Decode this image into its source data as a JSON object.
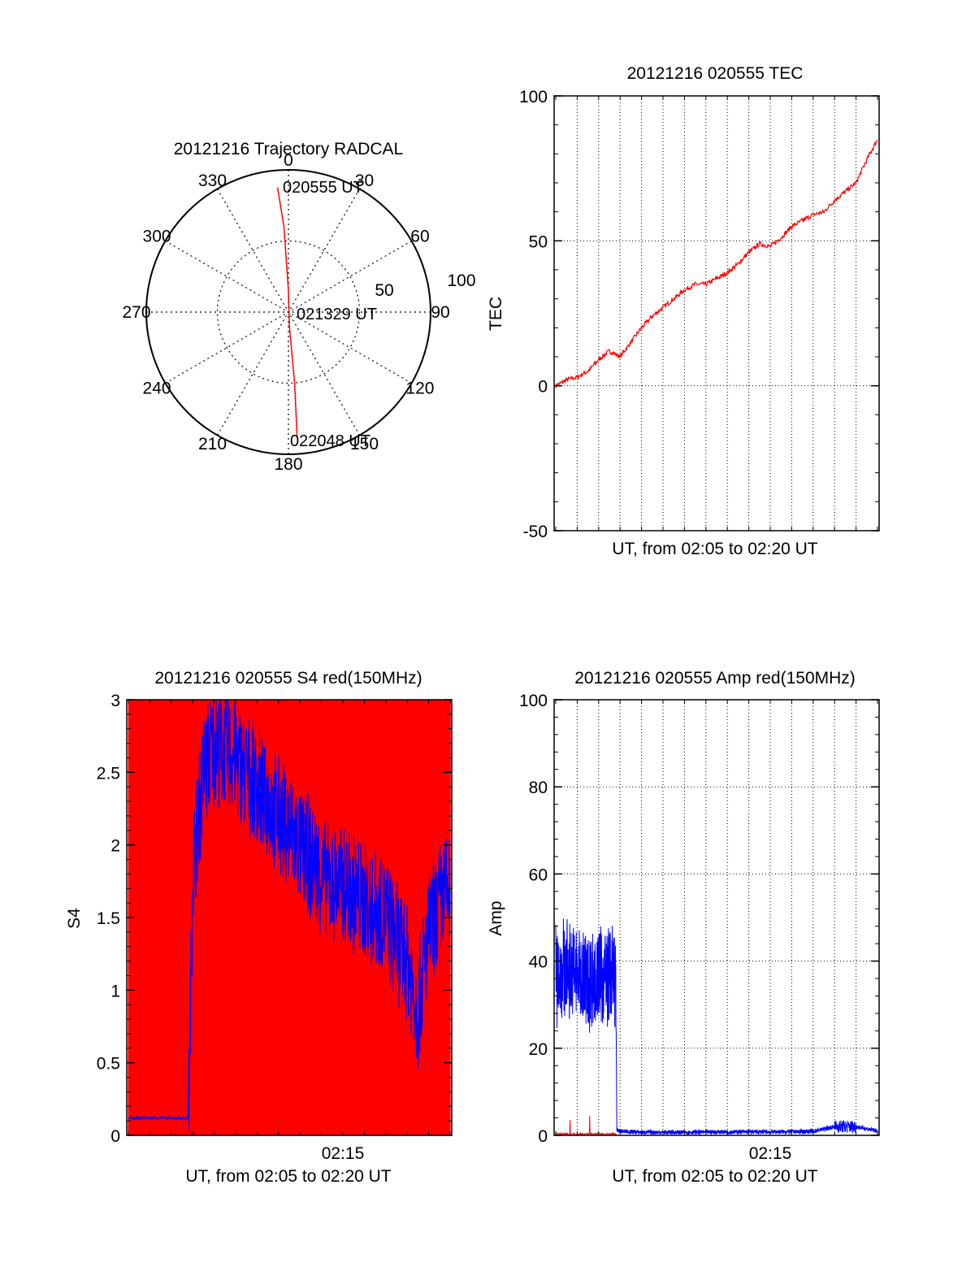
{
  "colors": {
    "red": "#ff0000",
    "blue": "#0000ff",
    "axis": "#000000",
    "grid": "#000000"
  },
  "chart_data": [
    {
      "id": "trajectory",
      "type": "polar",
      "title": "20121216 Trajectory RADCAL",
      "angle_labels": [
        "0",
        "30",
        "60",
        "90",
        "120",
        "150",
        "180",
        "210",
        "240",
        "270",
        "300",
        "330"
      ],
      "radial_labels": [
        "50",
        "100"
      ],
      "rlim": [
        0,
        100
      ],
      "grid": true,
      "annotations": [
        "020555 UT",
        "021329 UT",
        "022048 UT"
      ],
      "series": [
        {
          "color": "#ff0000",
          "points": [
            [
              355,
              88
            ],
            [
              357,
              60
            ],
            [
              0,
              15
            ],
            [
              176,
              10
            ],
            [
              175,
              50
            ],
            [
              176,
              88
            ]
          ]
        }
      ]
    },
    {
      "id": "tec",
      "type": "line",
      "title": "20121216 020555 TEC",
      "xlabel": "UT, from 02:05 to 02:20 UT",
      "ylabel": "TEC",
      "ylim": [
        -50,
        100
      ],
      "yticks": [
        "-50",
        "0",
        "50",
        "100"
      ],
      "xlim_minutes": [
        0,
        15
      ],
      "grid": true,
      "series": [
        {
          "color": "#ff0000",
          "x": [
            0,
            0.5,
            1,
            1.5,
            2,
            2.5,
            3,
            3.5,
            4,
            4.5,
            5,
            5.5,
            6,
            6.5,
            7,
            7.5,
            8,
            8.5,
            9,
            9.5,
            10,
            10.5,
            11,
            11.5,
            12,
            12.5,
            13,
            13.5,
            14,
            14.5,
            15
          ],
          "y": [
            0,
            2,
            3,
            5,
            9,
            12,
            10,
            15,
            20,
            24,
            27,
            30,
            33,
            35,
            35,
            37,
            39,
            42,
            46,
            49,
            48,
            51,
            55,
            57,
            59,
            60,
            64,
            67,
            70,
            78,
            85
          ]
        }
      ]
    },
    {
      "id": "s4",
      "type": "line",
      "title": "20121216 020555 S4 red(150MHz)",
      "xlabel": "UT, from 02:05 to 02:20 UT",
      "ylabel": "S4",
      "ylim": [
        0,
        3
      ],
      "yticks": [
        "0",
        "0.5",
        "1",
        "1.5",
        "2",
        "2.5",
        "3"
      ],
      "xtick_label": "02:15",
      "xlim_minutes": [
        0,
        15
      ],
      "series": [
        {
          "color": "#ff0000",
          "style": "dense-spikes",
          "x": [
            0,
            15
          ],
          "y": [
            0,
            3
          ]
        },
        {
          "color": "#0000ff",
          "x": [
            0,
            1,
            2,
            2.8,
            3,
            3.5,
            4,
            5,
            6,
            7,
            8,
            9,
            10,
            11,
            12,
            13,
            13.5,
            14,
            14.5,
            15
          ],
          "y": [
            0.12,
            0.12,
            0.12,
            0.12,
            1.8,
            2.5,
            2.7,
            2.6,
            2.4,
            2.2,
            2.0,
            1.8,
            1.7,
            1.6,
            1.5,
            1.2,
            0.85,
            1.4,
            1.6,
            1.7
          ]
        }
      ]
    },
    {
      "id": "amp",
      "type": "line",
      "title": "20121216 020555 Amp red(150MHz)",
      "xlabel": "UT, from 02:05 to 02:20 UT",
      "ylabel": "Amp",
      "ylim": [
        0,
        100
      ],
      "yticks": [
        "0",
        "20",
        "40",
        "60",
        "80",
        "100"
      ],
      "xtick_label": "02:15",
      "xlim_minutes": [
        0,
        15
      ],
      "grid": true,
      "series": [
        {
          "color": "#0000ff",
          "x": [
            0,
            0.5,
            1,
            1.5,
            2,
            2.5,
            2.8,
            2.85,
            4,
            6,
            8,
            10,
            12,
            13,
            14,
            15
          ],
          "y": [
            37,
            38,
            37,
            36,
            36,
            37,
            36,
            1,
            0.7,
            0.7,
            0.8,
            0.8,
            0.9,
            2,
            2,
            1
          ]
        },
        {
          "color": "#ff0000",
          "x": [
            0,
            1,
            2,
            2.8
          ],
          "y": [
            0.3,
            0.3,
            0.3,
            0.3
          ]
        }
      ]
    }
  ]
}
